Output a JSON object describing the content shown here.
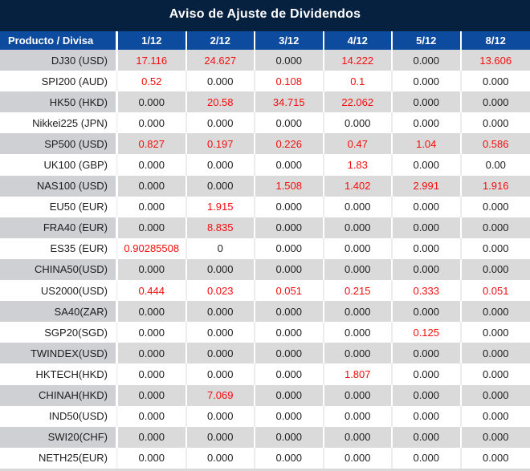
{
  "title": "Aviso de Ajuste de Dividendos",
  "colors": {
    "title_bg": "#06203f",
    "header_bg": "#0d4b9e",
    "alt_row_bg": "#dadada",
    "alt_product_bg": "#cfd0d3",
    "text": "#1d1d1d",
    "nonzero_text": "#f50d0d"
  },
  "table": {
    "header": {
      "product_label": "Producto / Divisa",
      "dates": [
        "1/12",
        "2/12",
        "3/12",
        "4/12",
        "5/12",
        "8/12"
      ]
    },
    "rows": [
      {
        "product": "DJ30 (USD)",
        "values": [
          "17.116",
          "24.627",
          "0.000",
          "14.222",
          "0.000",
          "13.606"
        ]
      },
      {
        "product": "SPI200 (AUD)",
        "values": [
          "0.52",
          "0.000",
          "0.108",
          "0.1",
          "0.000",
          "0.000"
        ]
      },
      {
        "product": "HK50 (HKD)",
        "values": [
          "0.000",
          "20.58",
          "34.715",
          "22.062",
          "0.000",
          "0.000"
        ]
      },
      {
        "product": "Nikkei225 (JPN)",
        "values": [
          "0.000",
          "0.000",
          "0.000",
          "0.000",
          "0.000",
          "0.000"
        ]
      },
      {
        "product": "SP500 (USD)",
        "values": [
          "0.827",
          "0.197",
          "0.226",
          "0.47",
          "1.04",
          "0.586"
        ]
      },
      {
        "product": "UK100 (GBP)",
        "values": [
          "0.000",
          "0.000",
          "0.000",
          "1.83",
          "0.000",
          "0.00"
        ]
      },
      {
        "product": "NAS100 (USD)",
        "values": [
          "0.000",
          "0.000",
          "1.508",
          "1.402",
          "2.991",
          "1.916"
        ]
      },
      {
        "product": "EU50 (EUR)",
        "values": [
          "0.000",
          "1.915",
          "0.000",
          "0.000",
          "0.000",
          "0.000"
        ]
      },
      {
        "product": "FRA40 (EUR)",
        "values": [
          "0.000",
          "8.835",
          "0.000",
          "0.000",
          "0.000",
          "0.000"
        ]
      },
      {
        "product": "ES35 (EUR)",
        "values": [
          "0.90285508",
          "0",
          "0.000",
          "0.000",
          "0.000",
          "0.000"
        ]
      },
      {
        "product": "CHINA50(USD)",
        "values": [
          "0.000",
          "0.000",
          "0.000",
          "0.000",
          "0.000",
          "0.000"
        ]
      },
      {
        "product": "US2000(USD)",
        "values": [
          "0.444",
          "0.023",
          "0.051",
          "0.215",
          "0.333",
          "0.051"
        ]
      },
      {
        "product": "SA40(ZAR)",
        "values": [
          "0.000",
          "0.000",
          "0.000",
          "0.000",
          "0.000",
          "0.000"
        ]
      },
      {
        "product": "SGP20(SGD)",
        "values": [
          "0.000",
          "0.000",
          "0.000",
          "0.000",
          "0.125",
          "0.000"
        ]
      },
      {
        "product": "TWINDEX(USD)",
        "values": [
          "0.000",
          "0.000",
          "0.000",
          "0.000",
          "0.000",
          "0.000"
        ]
      },
      {
        "product": "HKTECH(HKD)",
        "values": [
          "0.000",
          "0.000",
          "0.000",
          "1.807",
          "0.000",
          "0.000"
        ]
      },
      {
        "product": "CHINAH(HKD)",
        "values": [
          "0.000",
          "7.069",
          "0.000",
          "0.000",
          "0.000",
          "0.000"
        ]
      },
      {
        "product": "IND50(USD)",
        "values": [
          "0.000",
          "0.000",
          "0.000",
          "0.000",
          "0.000",
          "0.000"
        ]
      },
      {
        "product": "SWI20(CHF)",
        "values": [
          "0.000",
          "0.000",
          "0.000",
          "0.000",
          "0.000",
          "0.000"
        ]
      },
      {
        "product": "NETH25(EUR)",
        "values": [
          "0.000",
          "0.000",
          "0.000",
          "0.000",
          "0.000",
          "0.000"
        ]
      }
    ]
  }
}
